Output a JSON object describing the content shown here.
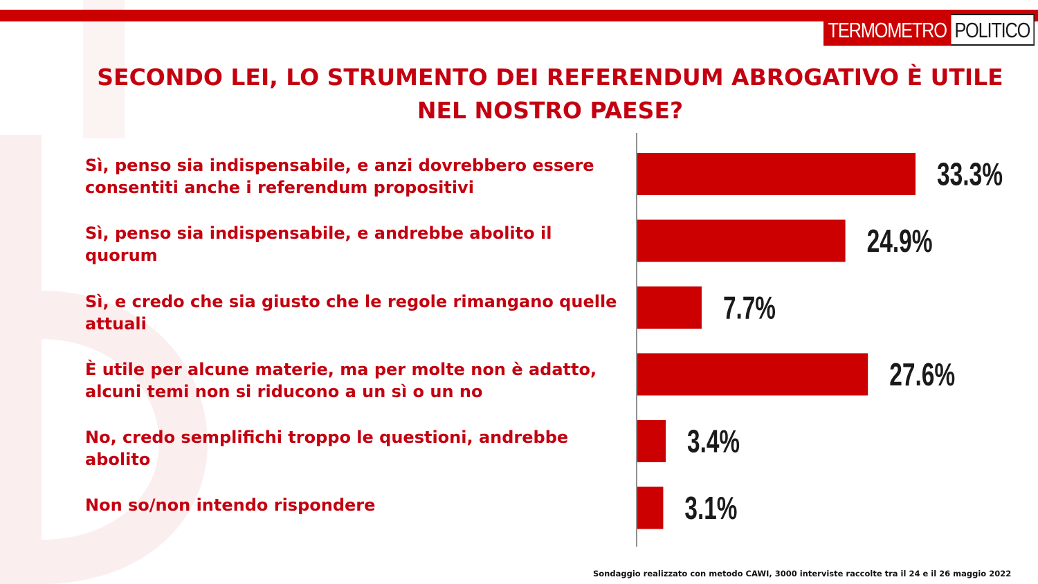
{
  "brand": {
    "logo_left": "TERMOMETRO",
    "logo_right": "POLITICO",
    "accent_color": "#cc0000",
    "bar_color": "#cc0000",
    "text_color": "#c40010"
  },
  "footnote": "Sondaggio realizzato con metodo CAWI, 3000 interviste raccolte tra il 24 e il 26 maggio 2022",
  "chart_data": {
    "type": "bar",
    "orientation": "horizontal",
    "title": "SECONDO LEI, LO STRUMENTO DEI REFERENDUM ABROGATIVO È UTILE NEL NOSTRO PAESE?",
    "categories": [
      "Sì, penso sia indispensabile, e anzi dovrebbero essere consentiti anche i referendum propositivi",
      "Sì, penso sia indispensabile, e andrebbe abolito il quorum",
      "Sì, e credo che sia giusto che le regole rimangano quelle attuali",
      "È utile per alcune materie, ma per molte non è adatto, alcuni temi non si riducono a un sì o un no",
      "No, credo semplifichi troppo le questioni, andrebbe abolito",
      "Non so/non intendo rispondere"
    ],
    "values": [
      33.3,
      24.9,
      7.7,
      27.6,
      3.4,
      3.1
    ],
    "value_labels": [
      "33.3%",
      "24.9%",
      "7.7%",
      "27.6%",
      "3.4%",
      "3.1%"
    ],
    "grid": false,
    "legend": "none"
  }
}
